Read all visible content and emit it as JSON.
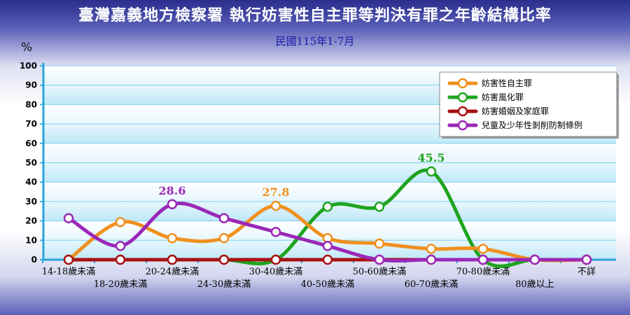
{
  "chart_data": {
    "type": "line",
    "title": "臺灣嘉義地方檢察署 執行妨害性自主罪等判決有罪之年齡結構比率",
    "subtitle": "民國115年1-7月",
    "ylabel": "%",
    "ylim": [
      0,
      100
    ],
    "yticks": [
      0,
      10,
      20,
      30,
      40,
      50,
      60,
      70,
      80,
      90,
      100
    ],
    "grid": true,
    "legend": "right",
    "categories": [
      "14-18歲未滿",
      "18-20歲未滿",
      "20-24歲未滿",
      "24-30歲未滿",
      "30-40歲未滿",
      "40-50歲未滿",
      "50-60歲未滿",
      "60-70歲未滿",
      "70-80歲未滿",
      "80歲以上",
      "不詳"
    ],
    "series": [
      {
        "name": "妨害性自主罪",
        "color": "#f0901e",
        "values": [
          0,
          19.4,
          11.1,
          11.1,
          27.8,
          11.1,
          8.3,
          5.6,
          5.6,
          0,
          0
        ]
      },
      {
        "name": "妨害風化罪",
        "color": "#1fa41f",
        "values": [
          0,
          0,
          0,
          0,
          0,
          27.3,
          27.3,
          45.5,
          0,
          0,
          0
        ]
      },
      {
        "name": "妨害婚姻及家庭罪",
        "color": "#a81212",
        "values": [
          0,
          0,
          0,
          0,
          0,
          0,
          0,
          0,
          0,
          0,
          0
        ]
      },
      {
        "name": "兒童及少年性剝削防制條例",
        "color": "#9b28b8",
        "values": [
          21.4,
          7.1,
          28.6,
          21.4,
          14.3,
          7.1,
          0,
          0,
          0,
          0,
          0
        ]
      }
    ],
    "annotations": [
      {
        "series": 3,
        "index": 2,
        "text": "28.6"
      },
      {
        "series": 0,
        "index": 4,
        "text": "27.8"
      },
      {
        "series": 1,
        "index": 7,
        "text": "45.5"
      }
    ]
  }
}
